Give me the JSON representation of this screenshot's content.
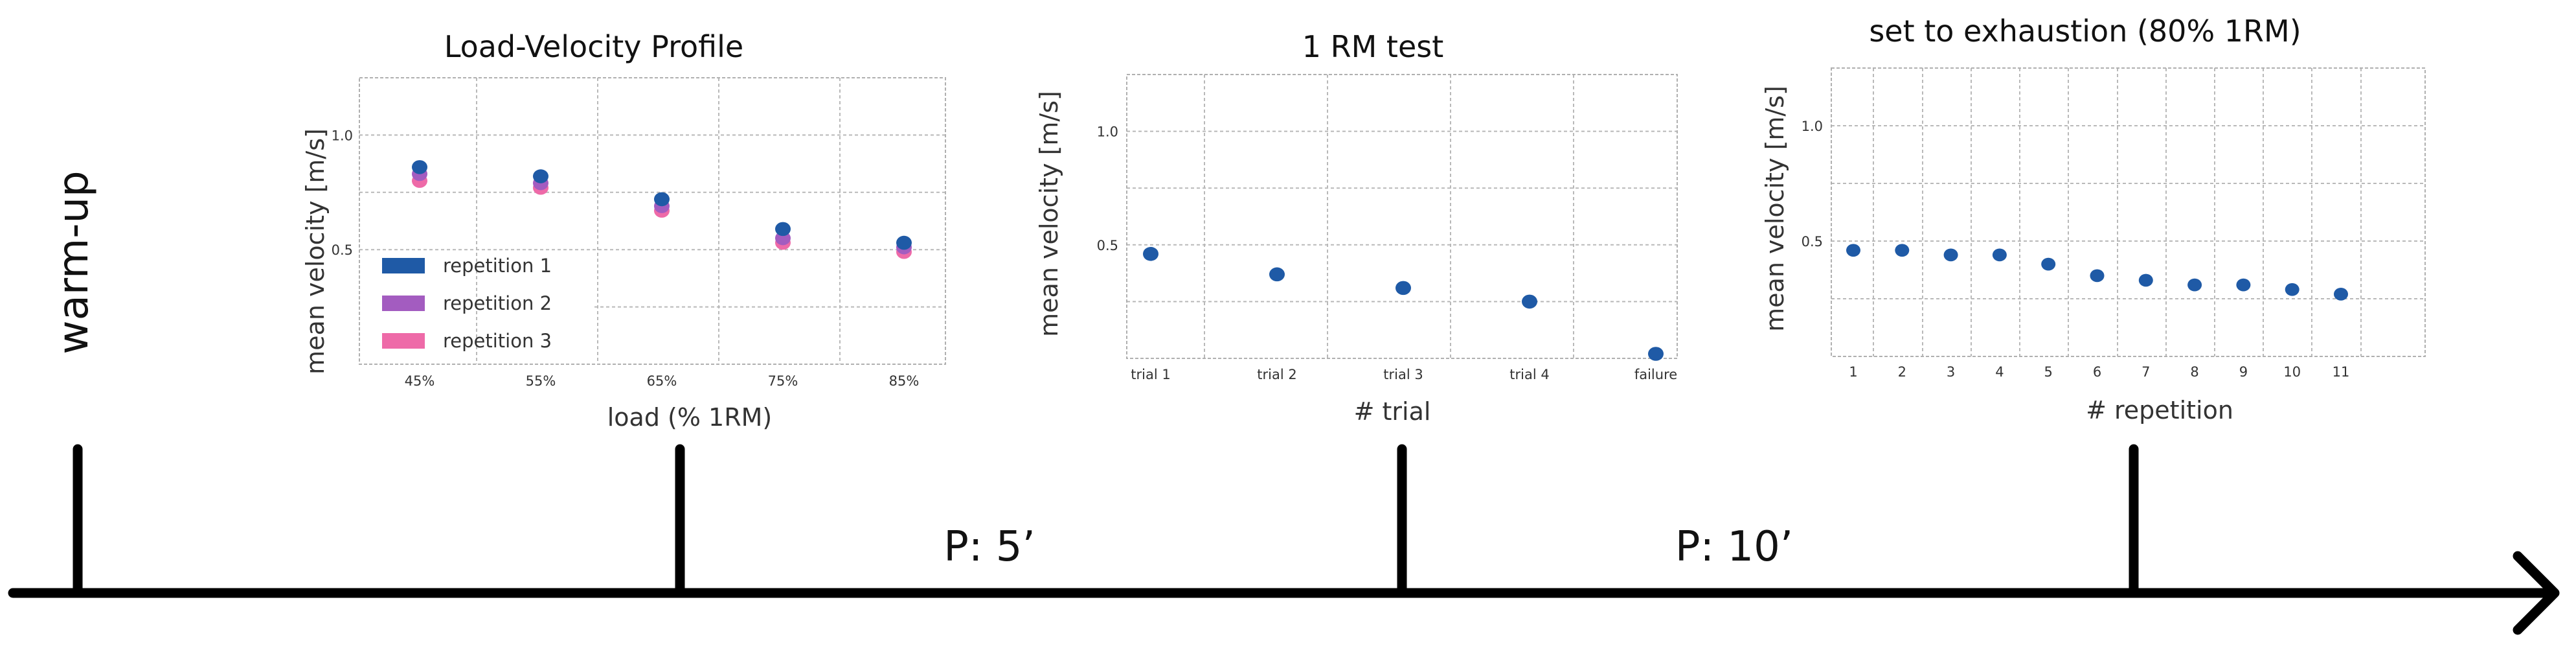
{
  "timeline": {
    "start_label": "warm-up",
    "pauses": [
      "P: 5’",
      "P: 10’"
    ]
  },
  "colors": {
    "series_1": "#1f5aa6",
    "series_2": "#a35cc0",
    "series_3": "#ee6aa8",
    "grid": "#b9b9b9",
    "frame": "#b0b0b0",
    "axis_line": "#000000"
  },
  "icons": {
    "timeline_end": "arrow-right-icon"
  },
  "chart_data": [
    {
      "type": "scatter",
      "title": "Load-Velocity Profile",
      "xlabel": "load (% 1RM)",
      "ylabel": "mean velocity [m/s]",
      "categories": [
        "45%",
        "55%",
        "65%",
        "75%",
        "85%"
      ],
      "ylim": [
        0,
        1.25
      ],
      "yticks": [
        "0.5",
        "1.0"
      ],
      "grid": true,
      "legend": "lower-left",
      "series": [
        {
          "name": "repetition 1",
          "values": [
            0.86,
            0.82,
            0.72,
            0.59,
            0.53
          ]
        },
        {
          "name": "repetition 2",
          "values": [
            0.83,
            0.79,
            0.69,
            0.55,
            0.51
          ]
        },
        {
          "name": "repetition 3",
          "values": [
            0.8,
            0.77,
            0.67,
            0.53,
            0.49
          ]
        }
      ]
    },
    {
      "type": "scatter",
      "title": "1 RM test",
      "xlabel": "# trial",
      "ylabel": "mean velocity [m/s]",
      "categories": [
        "trial 1",
        "trial 2",
        "trial 3",
        "trial 4",
        "failure"
      ],
      "ylim": [
        0,
        1.25
      ],
      "yticks": [
        "0.5",
        "1.0"
      ],
      "grid": true,
      "series": [
        {
          "values": [
            0.46,
            0.37,
            0.31,
            0.25,
            0.02
          ]
        }
      ]
    },
    {
      "type": "scatter",
      "title": "set to exhaustion (80% 1RM)",
      "xlabel": "# repetition",
      "ylabel": "mean velocity [m/s]",
      "categories": [
        "1",
        "2",
        "3",
        "4",
        "5",
        "6",
        "7",
        "8",
        "9",
        "10",
        "11"
      ],
      "ylim": [
        0,
        1.25
      ],
      "yticks": [
        "0.5",
        "1.0"
      ],
      "grid": true,
      "series": [
        {
          "values": [
            0.46,
            0.46,
            0.44,
            0.44,
            0.4,
            0.35,
            0.33,
            0.31,
            0.31,
            0.29,
            0.27
          ]
        }
      ]
    }
  ]
}
